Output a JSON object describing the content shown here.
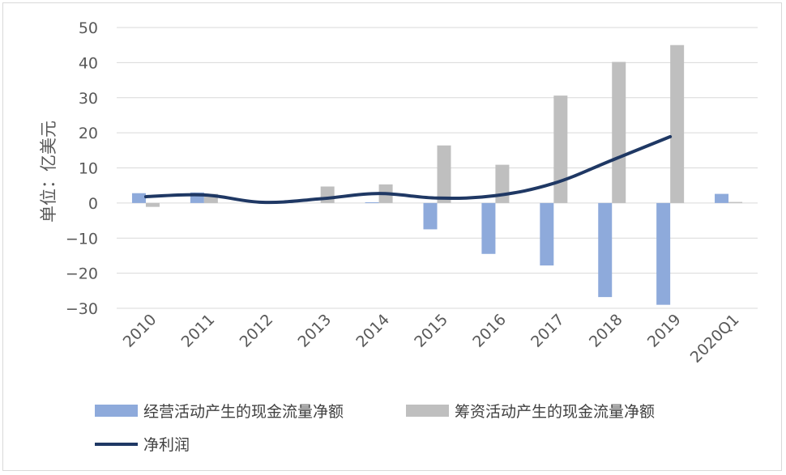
{
  "chart_data": {
    "type": "bar",
    "title": "",
    "xlabel": "",
    "ylabel": "单位：亿美元",
    "ylim": [
      -30,
      50
    ],
    "yticks": [
      50,
      40,
      30,
      20,
      10,
      0,
      -10,
      -20,
      -30
    ],
    "grid": true,
    "legend_position": "bottom",
    "categories": [
      "2010",
      "2011",
      "2012",
      "2013",
      "2014",
      "2015",
      "2016",
      "2017",
      "2018",
      "2019",
      "2020Q1"
    ],
    "series": [
      {
        "name": "经营活动产生的现金流量净额",
        "kind": "bar",
        "color": "#8eaadb",
        "values": [
          2.8,
          3.0,
          0.0,
          0.0,
          0.2,
          -7.5,
          -14.5,
          -17.8,
          -26.8,
          -29.0,
          2.6
        ]
      },
      {
        "name": "筹资活动产生的现金流量净额",
        "kind": "bar",
        "color": "#bfbfbf",
        "values": [
          -1.1,
          2.6,
          0.0,
          4.7,
          5.3,
          16.4,
          10.9,
          30.6,
          40.2,
          45.0,
          0.3
        ]
      },
      {
        "name": "净利润",
        "kind": "line",
        "color": "#1f3864",
        "values": [
          1.8,
          2.3,
          0.2,
          1.2,
          2.7,
          1.4,
          2.1,
          5.6,
          12.2,
          18.9,
          null
        ]
      }
    ]
  }
}
